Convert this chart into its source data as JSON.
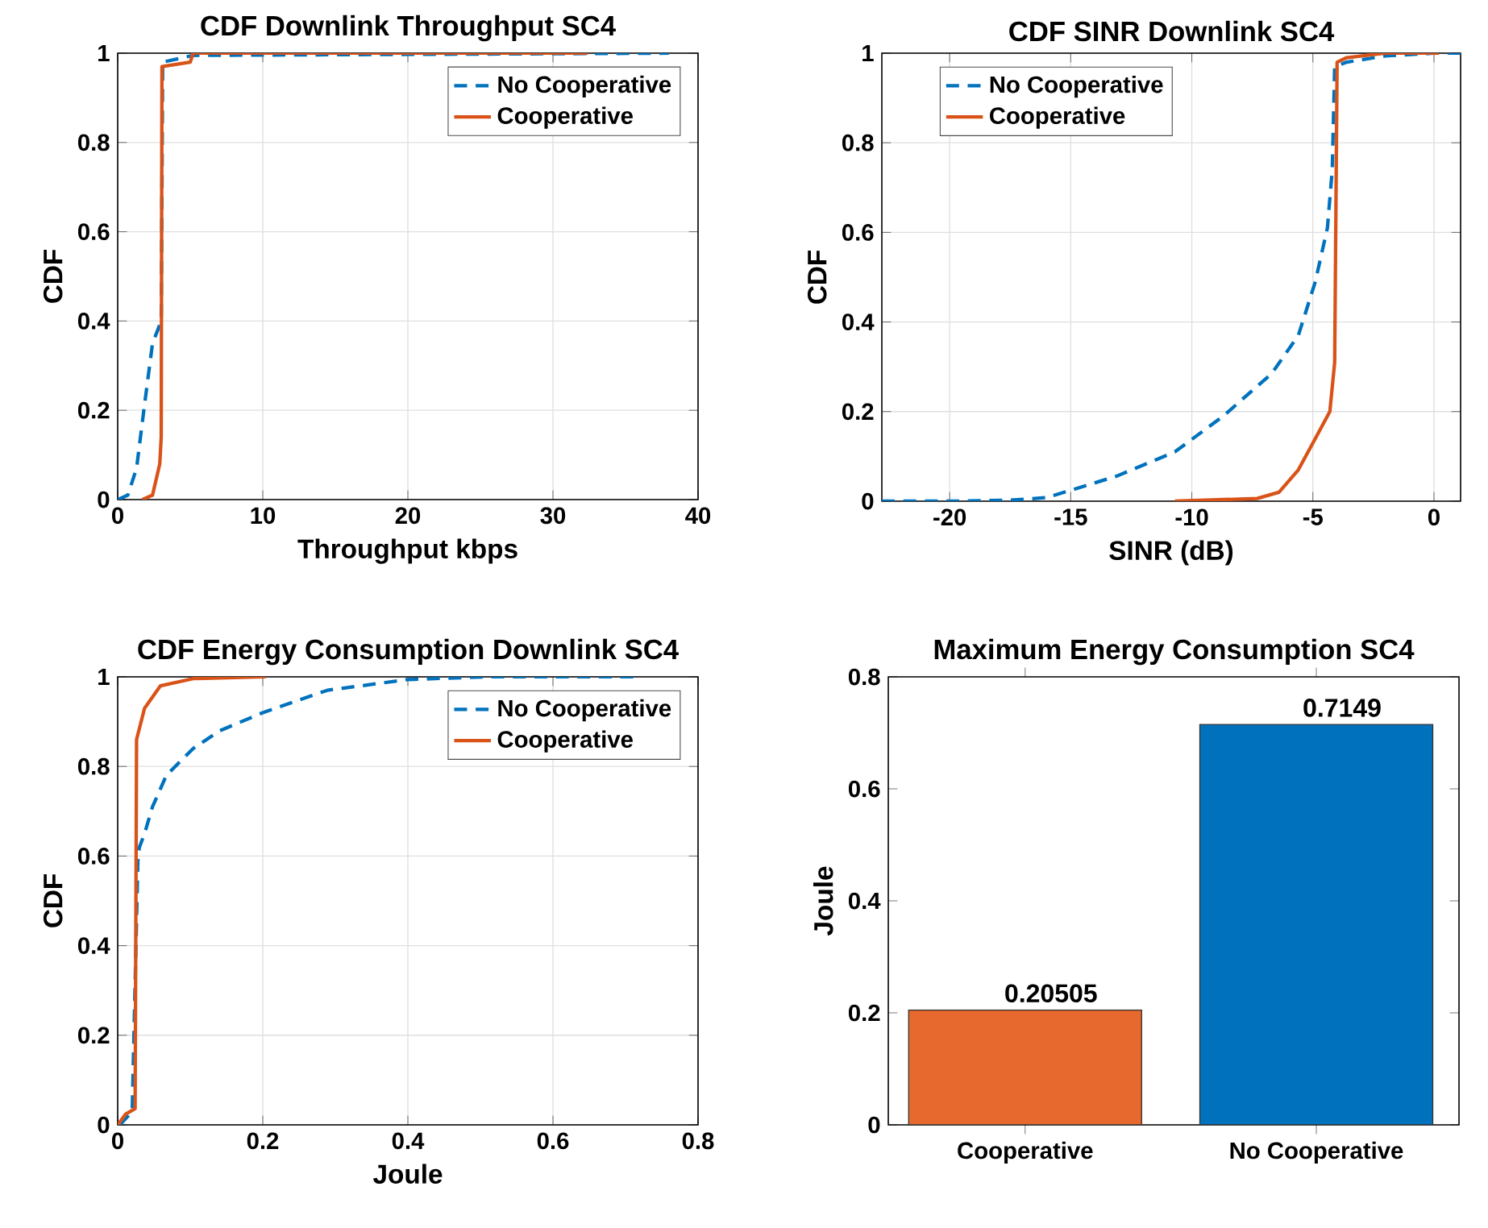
{
  "chart_data": [
    {
      "type": "line",
      "title": "CDF Downlink Throughput SC4",
      "xlabel": "Throughput kbps",
      "ylabel": "CDF",
      "xlim": [
        0,
        40
      ],
      "ylim": [
        0,
        1
      ],
      "xticks": [
        0,
        10,
        20,
        30,
        40
      ],
      "yticks": [
        0,
        0.2,
        0.4,
        0.6,
        0.8,
        1
      ],
      "grid": true,
      "legend": "top right",
      "series": [
        {
          "name": "No Cooperative",
          "color": "#0072bd",
          "line_style": "dashed",
          "x": [
            0,
            0.7,
            1.3,
            1.8,
            2.4,
            3.0,
            3.1,
            5.2,
            38
          ],
          "values": [
            0,
            0.01,
            0.07,
            0.2,
            0.35,
            0.4,
            0.98,
            0.995,
            1
          ]
        },
        {
          "name": "Cooperative",
          "color": "#d95319",
          "line_style": "solid",
          "x": [
            1.7,
            2.4,
            2.9,
            3.0,
            3.05,
            5.0,
            5.2,
            32.4
          ],
          "values": [
            0,
            0.01,
            0.08,
            0.14,
            0.97,
            0.98,
            1,
            1
          ]
        }
      ]
    },
    {
      "type": "line",
      "title": "CDF SINR Downlink SC4",
      "xlabel": "SINR (dB)",
      "ylabel": "CDF",
      "xlim": [
        -22.8,
        1.1
      ],
      "ylim": [
        0,
        1
      ],
      "xticks": [
        -20,
        -15,
        -10,
        -5,
        0
      ],
      "yticks": [
        0,
        0.2,
        0.4,
        0.6,
        0.8,
        1
      ],
      "grid": true,
      "legend": "top left",
      "series": [
        {
          "name": "No Cooperative",
          "color": "#0072bd",
          "line_style": "dashed",
          "x": [
            -22.8,
            -20,
            -17.6,
            -16,
            -14.9,
            -13.1,
            -10.7,
            -8.7,
            -6.7,
            -5.6,
            -4.9,
            -4.4,
            -4.2,
            -4.1,
            -3.6,
            -2.0,
            0,
            1.1
          ],
          "values": [
            0,
            0,
            0.002,
            0.008,
            0.026,
            0.056,
            0.11,
            0.19,
            0.285,
            0.37,
            0.49,
            0.61,
            0.74,
            0.97,
            0.98,
            0.994,
            1,
            1
          ]
        },
        {
          "name": "Cooperative",
          "color": "#d95319",
          "line_style": "solid",
          "x": [
            -10.7,
            -7.3,
            -6.4,
            -5.6,
            -4.9,
            -4.3,
            -4.1,
            -4.0,
            -3.6,
            -2.0,
            0.2
          ],
          "values": [
            0,
            0.006,
            0.02,
            0.07,
            0.14,
            0.2,
            0.31,
            0.98,
            0.99,
            1,
            1
          ]
        }
      ]
    },
    {
      "type": "line",
      "title": "CDF Energy Consumption Downlink SC4",
      "xlabel": "Joule",
      "ylabel": "CDF",
      "xlim": [
        0,
        0.8
      ],
      "ylim": [
        0,
        1
      ],
      "xticks": [
        0,
        0.2,
        0.4,
        0.6,
        0.8
      ],
      "yticks": [
        0,
        0.2,
        0.4,
        0.6,
        0.8,
        1
      ],
      "grid": true,
      "legend": "top right",
      "series": [
        {
          "name": "No Cooperative",
          "color": "#0072bd",
          "line_style": "dashed",
          "x": [
            0.003,
            0.02,
            0.028,
            0.03,
            0.037,
            0.048,
            0.067,
            0.104,
            0.141,
            0.2,
            0.289,
            0.4,
            0.51,
            0.711
          ],
          "values": [
            0,
            0.03,
            0.6,
            0.62,
            0.65,
            0.71,
            0.78,
            0.84,
            0.88,
            0.92,
            0.97,
            0.994,
            1,
            1
          ]
        },
        {
          "name": "Cooperative",
          "color": "#d95319",
          "line_style": "solid",
          "x": [
            0,
            0.011,
            0.024,
            0.026,
            0.037,
            0.059,
            0.104,
            0.204
          ],
          "values": [
            0,
            0.024,
            0.036,
            0.86,
            0.93,
            0.98,
            0.996,
            1
          ]
        }
      ]
    },
    {
      "type": "bar",
      "title": "Maximum Energy Consumption SC4",
      "ylabel": "Joule",
      "categories": [
        "Cooperative",
        "No Cooperative"
      ],
      "values": [
        0.20505,
        0.7149
      ],
      "colors": [
        "#e8692d",
        "#0072bd"
      ],
      "ylim": [
        0,
        0.8
      ],
      "yticks": [
        0,
        0.2,
        0.4,
        0.6,
        0.8
      ],
      "data_labels": true
    }
  ]
}
